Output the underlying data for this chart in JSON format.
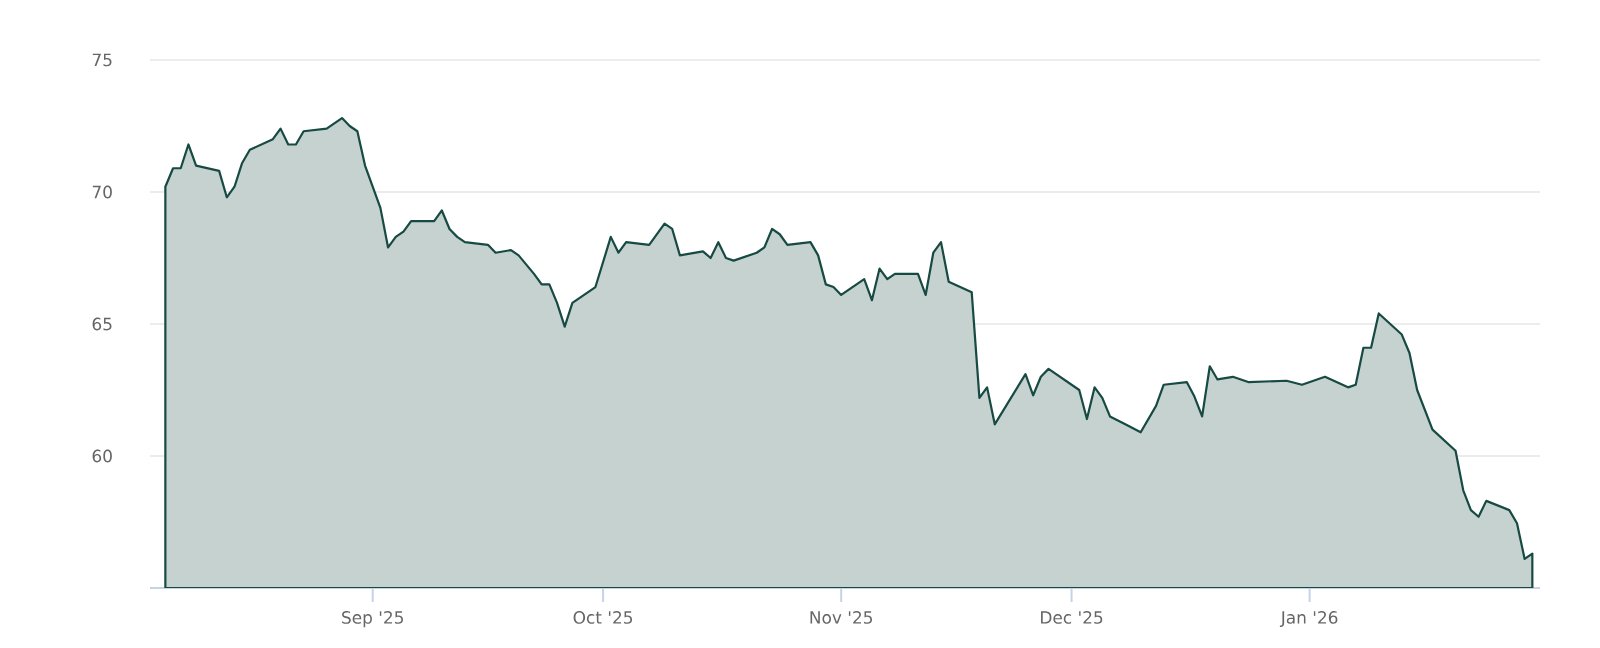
{
  "chart_data": {
    "type": "area",
    "x": [
      "2025-08-05",
      "2025-08-06",
      "2025-08-07",
      "2025-08-08",
      "2025-08-09",
      "2025-08-12",
      "2025-08-13",
      "2025-08-14",
      "2025-08-15",
      "2025-08-16",
      "2025-08-19",
      "2025-08-20",
      "2025-08-21",
      "2025-08-22",
      "2025-08-23",
      "2025-08-26",
      "2025-08-27",
      "2025-08-28",
      "2025-08-29",
      "2025-08-30",
      "2025-08-31",
      "2025-09-02",
      "2025-09-03",
      "2025-09-04",
      "2025-09-05",
      "2025-09-06",
      "2025-09-09",
      "2025-09-10",
      "2025-09-11",
      "2025-09-12",
      "2025-09-13",
      "2025-09-16",
      "2025-09-17",
      "2025-09-19",
      "2025-09-20",
      "2025-09-22",
      "2025-09-23",
      "2025-09-24",
      "2025-09-25",
      "2025-09-26",
      "2025-09-27",
      "2025-09-30",
      "2025-10-02",
      "2025-10-03",
      "2025-10-04",
      "2025-10-07",
      "2025-10-09",
      "2025-10-10",
      "2025-10-11",
      "2025-10-14",
      "2025-10-15",
      "2025-10-16",
      "2025-10-17",
      "2025-10-18",
      "2025-10-21",
      "2025-10-22",
      "2025-10-23",
      "2025-10-24",
      "2025-10-25",
      "2025-10-28",
      "2025-10-29",
      "2025-10-30",
      "2025-10-31",
      "2025-11-01",
      "2025-11-04",
      "2025-11-05",
      "2025-11-06",
      "2025-11-07",
      "2025-11-08",
      "2025-11-11",
      "2025-11-12",
      "2025-11-13",
      "2025-11-14",
      "2025-11-15",
      "2025-11-18",
      "2025-11-19",
      "2025-11-20",
      "2025-11-21",
      "2025-11-25",
      "2025-11-26",
      "2025-11-27",
      "2025-11-28",
      "2025-12-02",
      "2025-12-03",
      "2025-12-04",
      "2025-12-05",
      "2025-12-06",
      "2025-12-08",
      "2025-12-10",
      "2025-12-12",
      "2025-12-13",
      "2025-12-16",
      "2025-12-17",
      "2025-12-18",
      "2025-12-19",
      "2025-12-20",
      "2025-12-22",
      "2025-12-24",
      "2025-12-29",
      "2025-12-31",
      "2026-01-03",
      "2026-01-06",
      "2026-01-07",
      "2026-01-08",
      "2026-01-09",
      "2026-01-10",
      "2026-01-13",
      "2026-01-14",
      "2026-01-15",
      "2026-01-17",
      "2026-01-20",
      "2026-01-21",
      "2026-01-22",
      "2026-01-23",
      "2026-01-24",
      "2026-01-27",
      "2026-01-28",
      "2026-01-29",
      "2026-01-30"
    ],
    "series": [
      {
        "color": "#c5d2d0",
        "values": [
          70.2,
          70.9,
          70.9,
          71.8,
          71.0,
          70.8,
          69.8,
          70.2,
          71.1,
          71.6,
          72.0,
          72.4,
          71.8,
          71.8,
          72.3,
          72.4,
          72.6,
          72.8,
          72.5,
          72.3,
          71.0,
          69.4,
          67.9,
          68.3,
          68.5,
          68.9,
          68.9,
          69.3,
          68.6,
          68.3,
          68.1,
          68.0,
          67.7,
          67.8,
          67.6,
          66.9,
          66.5,
          66.5,
          65.8,
          64.9,
          65.8,
          66.4,
          68.3,
          67.7,
          68.1,
          68.0,
          68.8,
          68.6,
          67.6,
          67.75,
          67.5,
          68.1,
          67.5,
          67.4,
          67.7,
          67.9,
          68.6,
          68.4,
          68.0,
          68.1,
          67.6,
          66.5,
          66.4,
          66.1,
          66.7,
          65.9,
          67.1,
          66.7,
          66.9,
          66.9,
          66.1,
          67.7,
          68.1,
          66.6,
          66.2,
          62.2,
          62.6,
          61.2,
          63.1,
          62.3,
          63.0,
          63.3,
          62.5,
          61.4,
          62.6,
          62.2,
          61.5,
          61.2,
          60.9,
          61.9,
          62.7,
          62.8,
          62.25,
          61.5,
          63.4,
          62.9,
          63.0,
          62.8,
          62.85,
          62.7,
          63.0,
          62.6,
          62.7,
          64.1,
          64.1,
          65.4,
          64.6,
          63.9,
          62.5,
          61.0,
          60.2,
          58.7,
          57.95,
          57.7,
          58.3,
          57.95,
          57.45,
          56.1,
          56.3
        ]
      }
    ],
    "xlim": [
      "2025-08-03",
      "2026-01-31"
    ],
    "xticks": [
      {
        "value": "2025-09-01",
        "label": "Sep '25"
      },
      {
        "value": "2025-10-01",
        "label": "Oct '25"
      },
      {
        "value": "2025-11-01",
        "label": "Nov '25"
      },
      {
        "value": "2025-12-01",
        "label": "Dec '25"
      },
      {
        "value": "2026-01-01",
        "label": "Jan '26"
      }
    ],
    "ylim": [
      55,
      75
    ],
    "yticks": [
      60,
      65,
      70,
      75
    ],
    "grid": "y"
  }
}
